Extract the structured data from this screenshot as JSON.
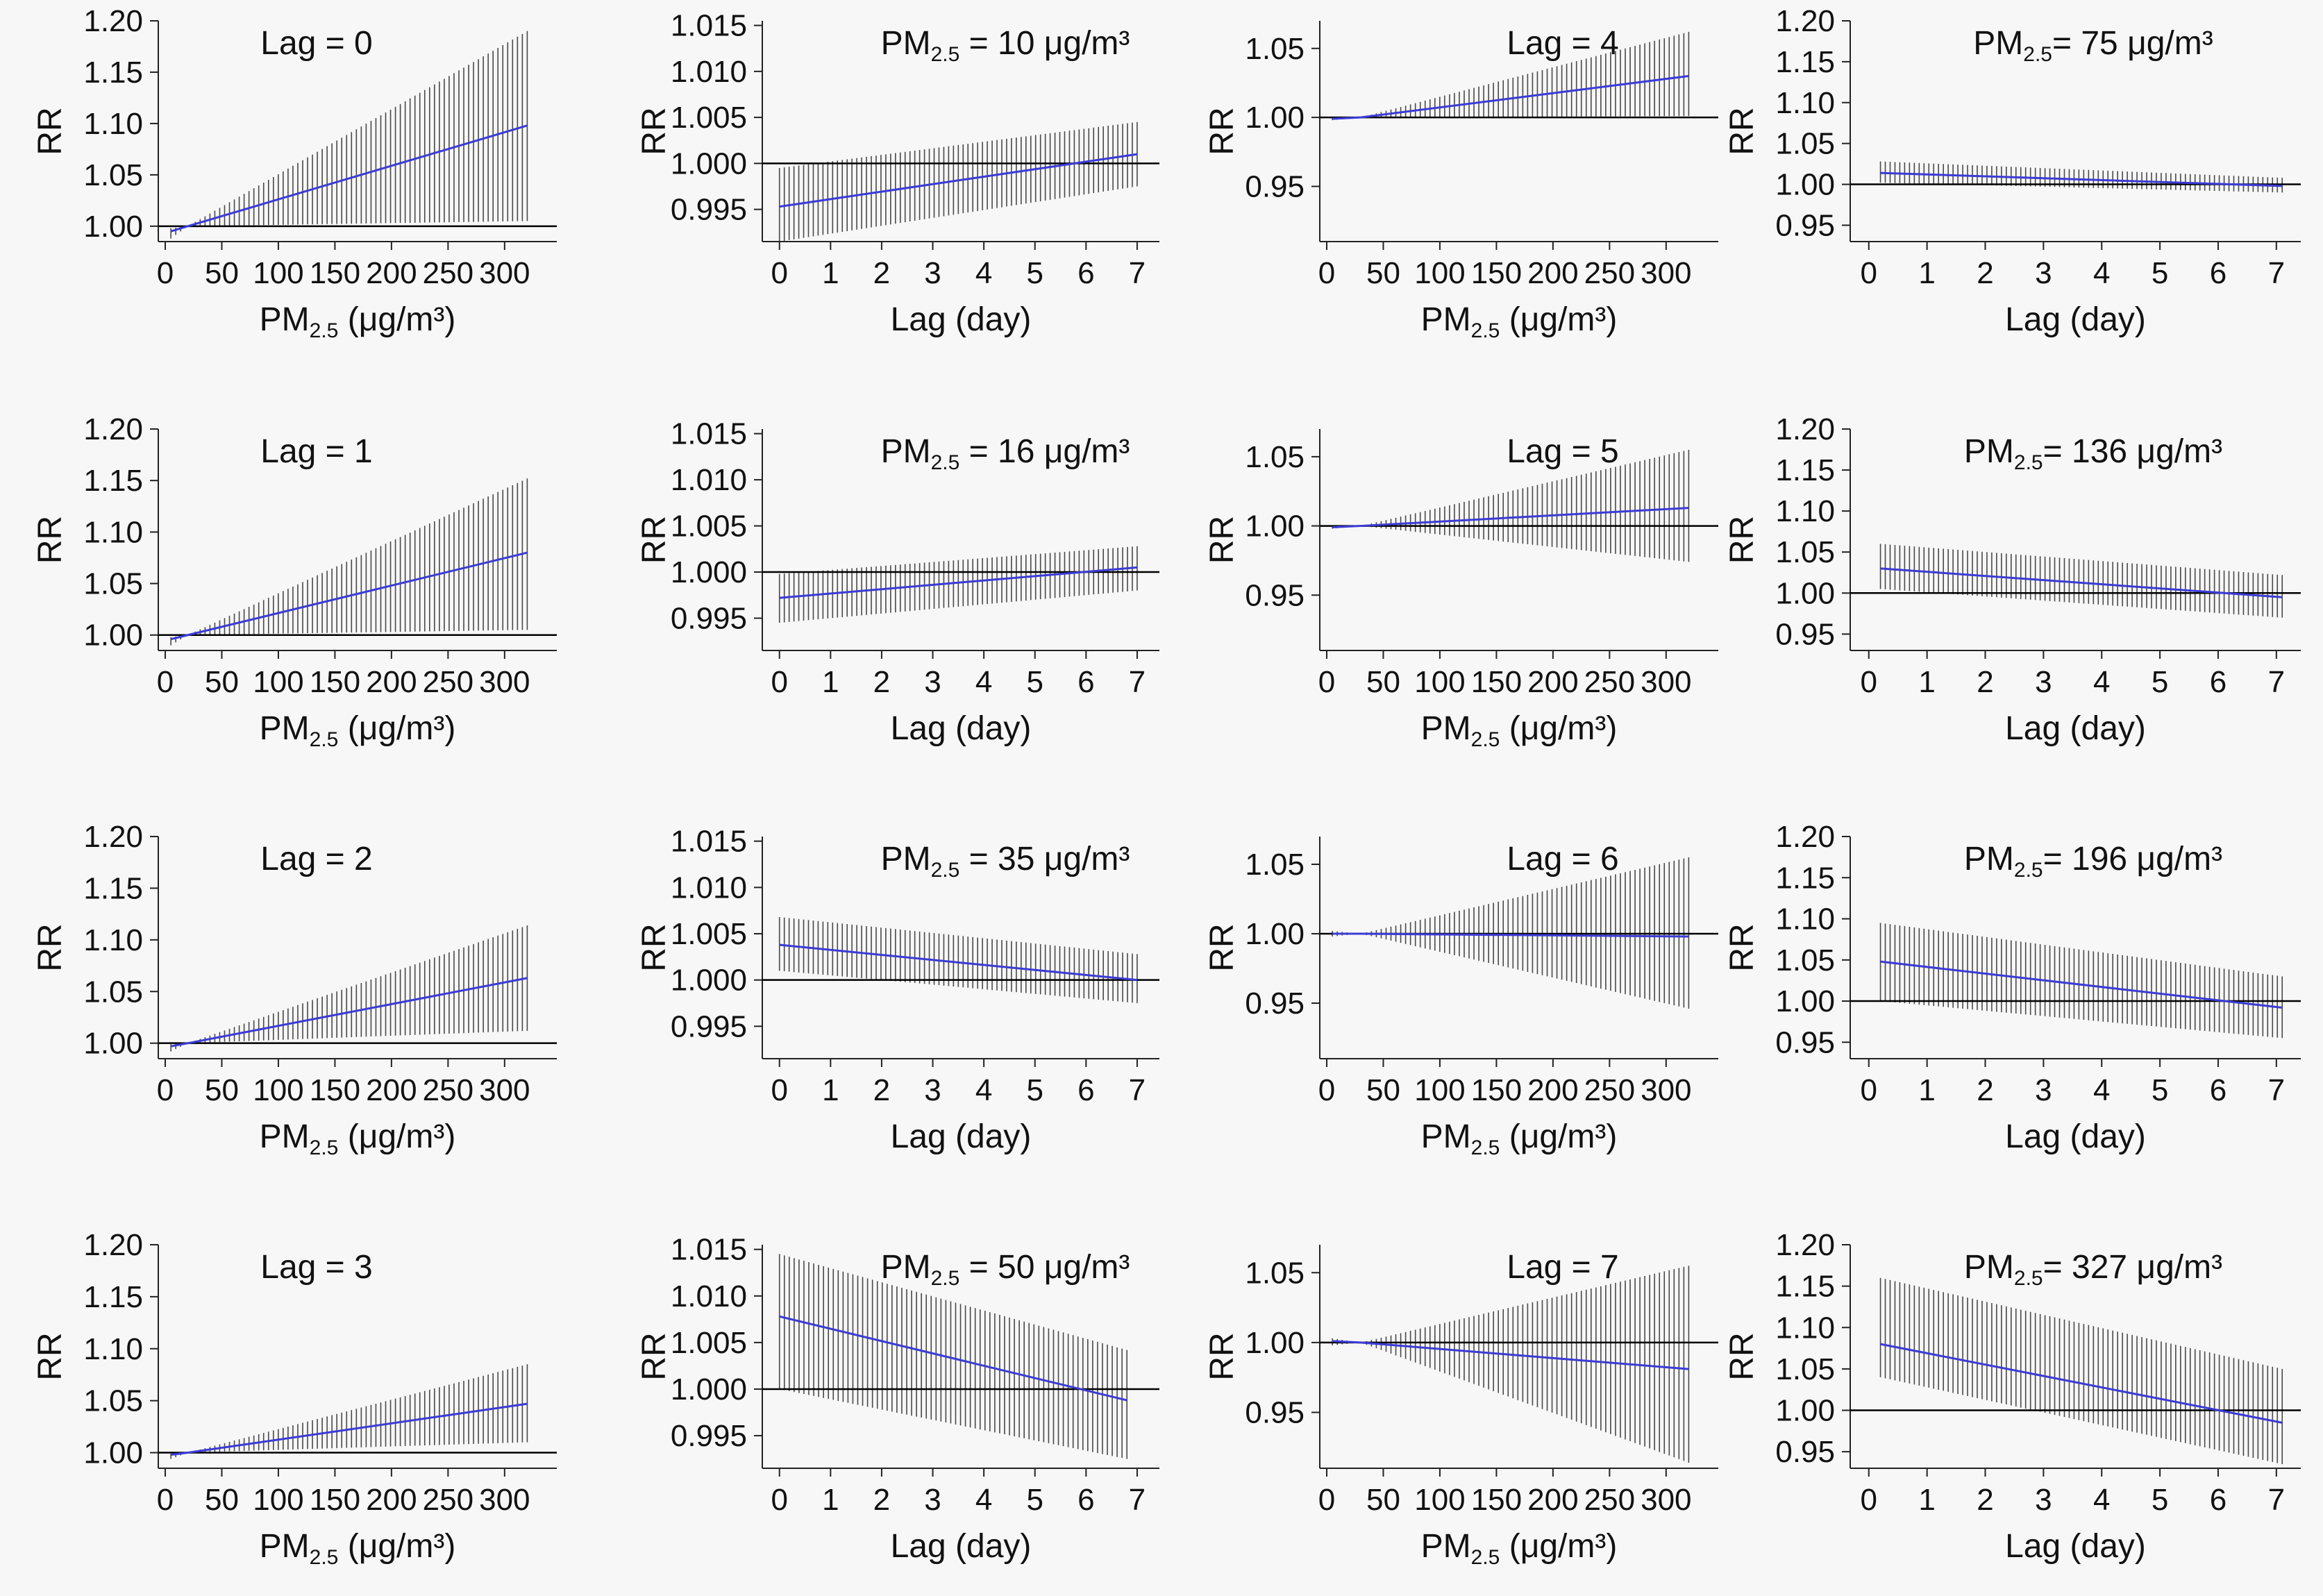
{
  "colors": {
    "background": "#f7f7f7",
    "estimate_line": "#3b3bd6",
    "ci_hatch": "#2a2a2a",
    "reference_line": "#000000",
    "axis": "#222222"
  },
  "chart_data": [
    {
      "type": "line",
      "title": "Lag = 0",
      "xlabel": "PM2.5 (μg/m³)",
      "ylabel": "RR",
      "xlim": [
        0,
        340
      ],
      "ylim": [
        0.985,
        1.2
      ],
      "xticks": [
        0,
        50,
        100,
        150,
        200,
        250,
        300
      ],
      "yticks": [
        1.0,
        1.05,
        1.1,
        1.15,
        1.2
      ],
      "tick_decimals": 2,
      "reference": 1.0,
      "x": [
        5,
        20,
        320
      ],
      "y": [
        0.995,
        1.0,
        1.098
      ],
      "ci_lower": [
        0.988,
        1.0,
        1.005
      ],
      "ci_upper": [
        0.998,
        1.0,
        1.19
      ]
    },
    {
      "type": "line",
      "title": "Lag = 1",
      "xlabel": "PM2.5 (μg/m³)",
      "ylabel": "RR",
      "xlim": [
        0,
        340
      ],
      "ylim": [
        0.985,
        1.2
      ],
      "xticks": [
        0,
        50,
        100,
        150,
        200,
        250,
        300
      ],
      "yticks": [
        1.0,
        1.05,
        1.1,
        1.15,
        1.2
      ],
      "tick_decimals": 2,
      "reference": 1.0,
      "x": [
        5,
        20,
        320
      ],
      "y": [
        0.996,
        1.0,
        1.08
      ],
      "ci_lower": [
        0.99,
        1.0,
        1.005
      ],
      "ci_upper": [
        0.998,
        1.0,
        1.152
      ]
    },
    {
      "type": "line",
      "title": "Lag = 2",
      "xlabel": "PM2.5 (μg/m³)",
      "ylabel": "RR",
      "xlim": [
        0,
        340
      ],
      "ylim": [
        0.985,
        1.2
      ],
      "xticks": [
        0,
        50,
        100,
        150,
        200,
        250,
        300
      ],
      "yticks": [
        1.0,
        1.05,
        1.1,
        1.15,
        1.2
      ],
      "tick_decimals": 2,
      "reference": 1.0,
      "x": [
        5,
        20,
        320
      ],
      "y": [
        0.997,
        1.0,
        1.063
      ],
      "ci_lower": [
        0.992,
        1.0,
        1.012
      ],
      "ci_upper": [
        0.999,
        1.0,
        1.114
      ]
    },
    {
      "type": "line",
      "title": "Lag = 3",
      "xlabel": "PM2.5 (μg/m³)",
      "ylabel": "RR",
      "xlim": [
        0,
        340
      ],
      "ylim": [
        0.985,
        1.2
      ],
      "xticks": [
        0,
        50,
        100,
        150,
        200,
        250,
        300
      ],
      "yticks": [
        1.0,
        1.05,
        1.1,
        1.15,
        1.2
      ],
      "tick_decimals": 2,
      "reference": 1.0,
      "x": [
        5,
        20,
        320
      ],
      "y": [
        0.998,
        1.0,
        1.047
      ],
      "ci_lower": [
        0.994,
        1.0,
        1.01
      ],
      "ci_upper": [
        0.999,
        1.0,
        1.085
      ]
    },
    {
      "type": "line",
      "title": "PM2.5 = 10 μg/m³",
      "xlabel": "Lag (day)",
      "ylabel": "RR",
      "xlim": [
        -0.2,
        7.3
      ],
      "ylim": [
        0.9915,
        1.0155
      ],
      "xticks": [
        0,
        1,
        2,
        3,
        4,
        5,
        6,
        7
      ],
      "yticks": [
        0.995,
        1.0,
        1.005,
        1.01,
        1.015
      ],
      "tick_decimals": 3,
      "reference": 1.0,
      "x": [
        0,
        7
      ],
      "y": [
        0.9953,
        1.001
      ],
      "ci_lower": [
        0.9915,
        0.9975
      ],
      "ci_upper": [
        0.9995,
        1.0045
      ]
    },
    {
      "type": "line",
      "title": "PM2.5 = 16 μg/m³",
      "xlabel": "Lag (day)",
      "ylabel": "RR",
      "xlim": [
        -0.2,
        7.3
      ],
      "ylim": [
        0.9915,
        1.0155
      ],
      "xticks": [
        0,
        1,
        2,
        3,
        4,
        5,
        6,
        7
      ],
      "yticks": [
        0.995,
        1.0,
        1.005,
        1.01,
        1.015
      ],
      "tick_decimals": 3,
      "reference": 1.0,
      "x": [
        0,
        7
      ],
      "y": [
        0.9972,
        1.0005
      ],
      "ci_lower": [
        0.9945,
        0.998
      ],
      "ci_upper": [
        0.9998,
        1.0028
      ]
    },
    {
      "type": "line",
      "title": "PM2.5 = 35 μg/m³",
      "xlabel": "Lag (day)",
      "ylabel": "RR",
      "xlim": [
        -0.2,
        7.3
      ],
      "ylim": [
        0.9915,
        1.0155
      ],
      "xticks": [
        0,
        1,
        2,
        3,
        4,
        5,
        6,
        7
      ],
      "yticks": [
        0.995,
        1.0,
        1.005,
        1.01,
        1.015
      ],
      "tick_decimals": 3,
      "reference": 1.0,
      "x": [
        0,
        7
      ],
      "y": [
        1.0038,
        1.0
      ],
      "ci_lower": [
        1.001,
        0.9975
      ],
      "ci_upper": [
        1.0068,
        1.0028
      ]
    },
    {
      "type": "line",
      "title": "PM2.5 = 50 μg/m³",
      "xlabel": "Lag (day)",
      "ylabel": "RR",
      "xlim": [
        -0.2,
        7.3
      ],
      "ylim": [
        0.9915,
        1.0155
      ],
      "xticks": [
        0,
        1,
        2,
        3,
        4,
        5,
        6,
        7
      ],
      "yticks": [
        0.995,
        1.0,
        1.005,
        1.01,
        1.015
      ],
      "tick_decimals": 3,
      "reference": 1.0,
      "x": [
        0,
        6.8
      ],
      "y": [
        1.0078,
        0.9988
      ],
      "ci_lower": [
        1.0,
        0.9925
      ],
      "ci_upper": [
        1.0145,
        1.0042
      ]
    },
    {
      "type": "line",
      "title": "Lag = 4",
      "xlabel": "PM2.5 (μg/m³)",
      "ylabel": "RR",
      "xlim": [
        0,
        340
      ],
      "ylim": [
        0.91,
        1.07
      ],
      "xticks": [
        0,
        50,
        100,
        150,
        200,
        250,
        300
      ],
      "yticks": [
        0.95,
        1.0,
        1.05
      ],
      "tick_decimals": 2,
      "reference": 1.0,
      "x": [
        5,
        30,
        320
      ],
      "y": [
        0.999,
        1.0,
        1.03
      ],
      "ci_lower": [
        0.998,
        1.0,
        1.001
      ],
      "ci_upper": [
        1.0,
        1.0,
        1.062
      ]
    },
    {
      "type": "line",
      "title": "Lag = 5",
      "xlabel": "PM2.5 (μg/m³)",
      "ylabel": "RR",
      "xlim": [
        0,
        340
      ],
      "ylim": [
        0.91,
        1.07
      ],
      "xticks": [
        0,
        50,
        100,
        150,
        200,
        250,
        300
      ],
      "yticks": [
        0.95,
        1.0,
        1.05
      ],
      "tick_decimals": 2,
      "reference": 1.0,
      "x": [
        5,
        30,
        320
      ],
      "y": [
        0.999,
        1.0,
        1.013
      ],
      "ci_lower": [
        0.998,
        1.0,
        0.974
      ],
      "ci_upper": [
        1.0,
        1.0,
        1.055
      ]
    },
    {
      "type": "line",
      "title": "Lag = 6",
      "xlabel": "PM2.5 (μg/m³)",
      "ylabel": "RR",
      "xlim": [
        0,
        340
      ],
      "ylim": [
        0.91,
        1.07
      ],
      "xticks": [
        0,
        50,
        100,
        150,
        200,
        250,
        300
      ],
      "yticks": [
        0.95,
        1.0,
        1.05
      ],
      "tick_decimals": 2,
      "reference": 1.0,
      "x": [
        5,
        30,
        320
      ],
      "y": [
        1.0,
        1.0,
        0.998
      ],
      "ci_lower": [
        0.998,
        1.0,
        0.946
      ],
      "ci_upper": [
        1.002,
        1.0,
        1.055
      ]
    },
    {
      "type": "line",
      "title": "Lag = 7",
      "xlabel": "PM2.5 (μg/m³)",
      "ylabel": "RR",
      "xlim": [
        0,
        340
      ],
      "ylim": [
        0.91,
        1.07
      ],
      "xticks": [
        0,
        50,
        100,
        150,
        200,
        250,
        300
      ],
      "yticks": [
        0.95,
        1.0,
        1.05
      ],
      "tick_decimals": 2,
      "reference": 1.0,
      "x": [
        5,
        30,
        320
      ],
      "y": [
        1.001,
        1.0,
        0.981
      ],
      "ci_lower": [
        0.998,
        1.0,
        0.914
      ],
      "ci_upper": [
        1.003,
        1.0,
        1.055
      ]
    },
    {
      "type": "line",
      "title": "PM2.5= 75 μg/m³",
      "xlabel": "Lag (day)",
      "ylabel": "RR",
      "xlim": [
        -0.2,
        7.3
      ],
      "ylim": [
        0.93,
        1.2
      ],
      "xticks": [
        0,
        1,
        2,
        3,
        4,
        5,
        6,
        7
      ],
      "yticks": [
        0.95,
        1.0,
        1.05,
        1.1,
        1.15,
        1.2
      ],
      "tick_decimals": 2,
      "reference": 1.0,
      "x": [
        0.2,
        7.1
      ],
      "y": [
        1.014,
        0.998
      ],
      "ci_lower": [
        1.002,
        0.99
      ],
      "ci_upper": [
        1.028,
        1.008
      ]
    },
    {
      "type": "line",
      "title": "PM2.5= 136 μg/m³",
      "xlabel": "Lag (day)",
      "ylabel": "RR",
      "xlim": [
        -0.2,
        7.3
      ],
      "ylim": [
        0.93,
        1.2
      ],
      "xticks": [
        0,
        1,
        2,
        3,
        4,
        5,
        6,
        7
      ],
      "yticks": [
        0.95,
        1.0,
        1.05,
        1.1,
        1.15,
        1.2
      ],
      "tick_decimals": 2,
      "reference": 1.0,
      "x": [
        0.2,
        7.1
      ],
      "y": [
        1.03,
        0.995
      ],
      "ci_lower": [
        1.005,
        0.97
      ],
      "ci_upper": [
        1.06,
        1.022
      ]
    },
    {
      "type": "line",
      "title": "PM2.5= 196 μg/m³",
      "xlabel": "Lag (day)",
      "ylabel": "RR",
      "xlim": [
        -0.2,
        7.3
      ],
      "ylim": [
        0.93,
        1.2
      ],
      "xticks": [
        0,
        1,
        2,
        3,
        4,
        5,
        6,
        7
      ],
      "yticks": [
        0.95,
        1.0,
        1.05,
        1.1,
        1.15,
        1.2
      ],
      "tick_decimals": 2,
      "reference": 1.0,
      "x": [
        0.2,
        7.1
      ],
      "y": [
        1.048,
        0.992
      ],
      "ci_lower": [
        1.0,
        0.955
      ],
      "ci_upper": [
        1.095,
        1.03
      ]
    },
    {
      "type": "line",
      "title": "PM2.5= 327 μg/m³",
      "xlabel": "Lag (day)",
      "ylabel": "RR",
      "xlim": [
        -0.2,
        7.3
      ],
      "ylim": [
        0.93,
        1.2
      ],
      "xticks": [
        0,
        1,
        2,
        3,
        4,
        5,
        6,
        7
      ],
      "yticks": [
        0.95,
        1.0,
        1.05,
        1.1,
        1.15,
        1.2
      ],
      "tick_decimals": 2,
      "reference": 1.0,
      "x": [
        0.2,
        7.1
      ],
      "y": [
        1.08,
        0.985
      ],
      "ci_lower": [
        1.04,
        0.935
      ],
      "ci_upper": [
        1.16,
        1.05
      ]
    }
  ]
}
